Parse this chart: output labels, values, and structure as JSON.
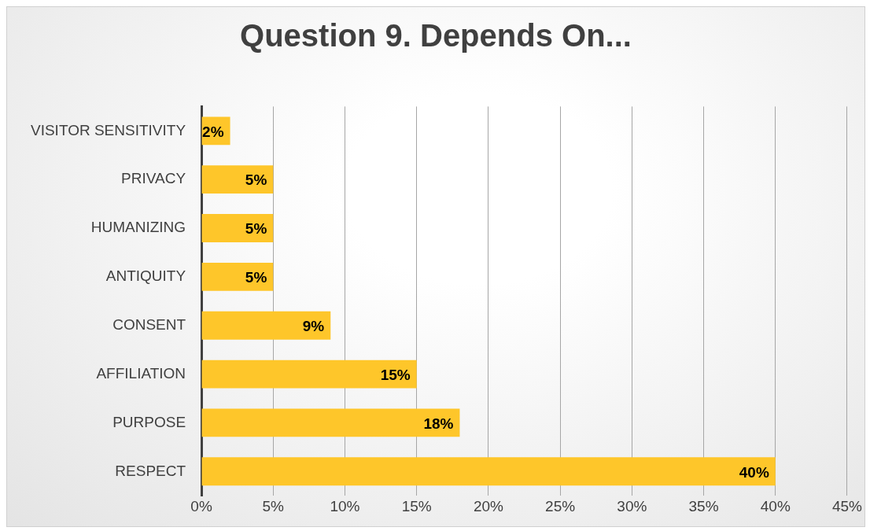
{
  "chart_data": {
    "type": "bar",
    "orientation": "horizontal",
    "title": "Question 9. Depends On...",
    "categories": [
      "VISITOR SENSITIVITY",
      "PRIVACY",
      "HUMANIZING",
      "ANTIQUITY",
      "CONSENT",
      "AFFILIATION",
      "PURPOSE",
      "RESPECT"
    ],
    "values": [
      2,
      5,
      5,
      5,
      9,
      15,
      18,
      40
    ],
    "value_labels": [
      "2%",
      "5%",
      "5%",
      "5%",
      "9%",
      "15%",
      "18%",
      "40%"
    ],
    "color": "#fec62a",
    "xlim": [
      0,
      45
    ],
    "xticks": [
      {
        "value": 0,
        "label": "0%"
      },
      {
        "value": 5,
        "label": "5%"
      },
      {
        "value": 10,
        "label": "10%"
      },
      {
        "value": 15,
        "label": "15%"
      },
      {
        "value": 20,
        "label": "20%"
      },
      {
        "value": 25,
        "label": "25%"
      },
      {
        "value": 30,
        "label": "30%"
      },
      {
        "value": 35,
        "label": "35%"
      },
      {
        "value": 40,
        "label": "40%"
      },
      {
        "value": 45,
        "label": "45%"
      }
    ],
    "grid": "x",
    "legend": false
  }
}
